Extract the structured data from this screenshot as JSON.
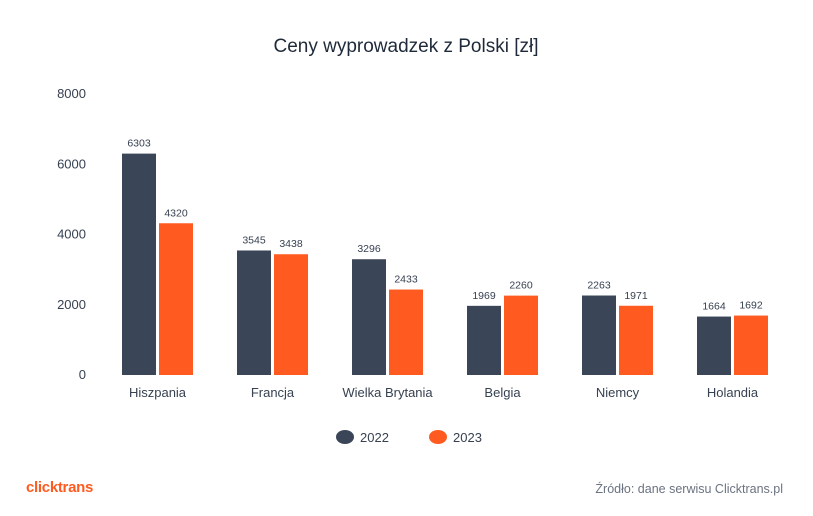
{
  "chart_data": {
    "type": "bar",
    "title": "Ceny wyprowadzek z Polski [zł]",
    "categories": [
      "Hiszpania",
      "Francja",
      "Wielka Brytania",
      "Belgia",
      "Niemcy",
      "Holandia"
    ],
    "series": [
      {
        "name": "2022",
        "values": [
          6303,
          3545,
          3296,
          1969,
          2263,
          1664
        ],
        "color": "#3b4558"
      },
      {
        "name": "2023",
        "values": [
          4320,
          3438,
          2433,
          2260,
          1971,
          1692
        ],
        "color": "#ff5a1f"
      }
    ],
    "ylim": [
      0,
      8000
    ],
    "yticks": [
      "0",
      "2000",
      "4000",
      "6000",
      "8000"
    ],
    "grid": false,
    "legend": "bottom-center"
  },
  "footer": {
    "logo": "clicktrans",
    "source": "Źródło: dane serwisu Clicktrans.pl"
  }
}
